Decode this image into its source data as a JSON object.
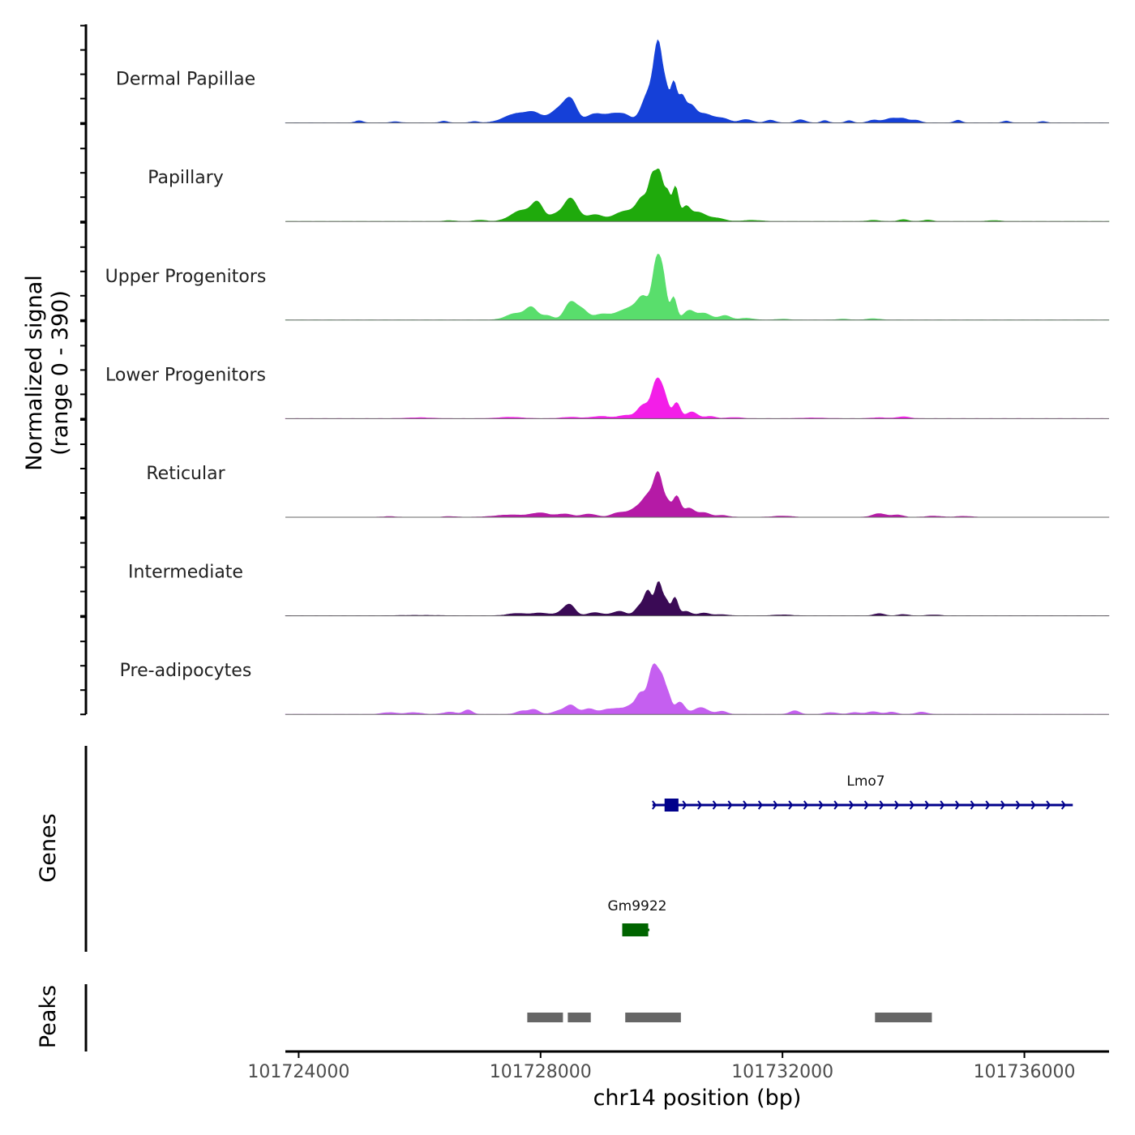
{
  "chart_data": {
    "type": "area",
    "title": "",
    "ylabel_line1": "Normalized signal",
    "ylabel_line2": "(range 0 - 390)",
    "ylim": [
      0,
      390
    ],
    "xlabel": "chr14 position (bp)",
    "xlim": [
      101723780,
      101737400
    ],
    "xticks": [
      101724000,
      101728000,
      101732000,
      101736000
    ],
    "xtick_labels": [
      "101724000",
      "101728000",
      "101732000",
      "101736000"
    ],
    "tracks": [
      {
        "name": "Dermal Papillae",
        "color": "#1540D8",
        "peaks": [
          [
            101725000,
            10,
            60
          ],
          [
            101725600,
            5,
            80
          ],
          [
            101726400,
            8,
            60
          ],
          [
            101726900,
            6,
            70
          ],
          [
            101727600,
            40,
            200
          ],
          [
            101727900,
            35,
            130
          ],
          [
            101728300,
            60,
            140
          ],
          [
            101728500,
            90,
            100
          ],
          [
            101728900,
            40,
            140
          ],
          [
            101729200,
            35,
            120
          ],
          [
            101729400,
            30,
            100
          ],
          [
            101729800,
            140,
            120
          ],
          [
            101729950,
            300,
            70
          ],
          [
            101730080,
            110,
            50
          ],
          [
            101730200,
            170,
            50
          ],
          [
            101730330,
            110,
            60
          ],
          [
            101730480,
            70,
            80
          ],
          [
            101730700,
            40,
            130
          ],
          [
            101731000,
            20,
            120
          ],
          [
            101731400,
            15,
            100
          ],
          [
            101731800,
            12,
            80
          ],
          [
            101732300,
            14,
            80
          ],
          [
            101732700,
            10,
            60
          ],
          [
            101733100,
            10,
            60
          ],
          [
            101733500,
            12,
            80
          ],
          [
            101733800,
            20,
            120
          ],
          [
            101734000,
            15,
            80
          ],
          [
            101734200,
            12,
            80
          ],
          [
            101734900,
            12,
            60
          ],
          [
            101735700,
            8,
            60
          ],
          [
            101736300,
            6,
            60
          ]
        ]
      },
      {
        "name": "Papillary",
        "color": "#1FAA0C",
        "peaks": [
          [
            101726500,
            4,
            80
          ],
          [
            101727000,
            6,
            90
          ],
          [
            101727700,
            50,
            180
          ],
          [
            101727950,
            70,
            90
          ],
          [
            101728250,
            30,
            120
          ],
          [
            101728500,
            100,
            110
          ],
          [
            101728900,
            30,
            150
          ],
          [
            101729300,
            30,
            120
          ],
          [
            101729500,
            35,
            120
          ],
          [
            101729700,
            100,
            100
          ],
          [
            101729850,
            160,
            60
          ],
          [
            101729970,
            200,
            60
          ],
          [
            101730100,
            120,
            50
          ],
          [
            101730230,
            150,
            50
          ],
          [
            101730400,
            60,
            70
          ],
          [
            101730600,
            40,
            120
          ],
          [
            101730900,
            15,
            130
          ],
          [
            101731500,
            5,
            150
          ],
          [
            101733500,
            5,
            100
          ],
          [
            101734000,
            8,
            80
          ],
          [
            101734400,
            6,
            80
          ],
          [
            101735500,
            4,
            100
          ]
        ]
      },
      {
        "name": "Upper Progenitors",
        "color": "#59DE6C",
        "peaks": [
          [
            101727600,
            30,
            160
          ],
          [
            101727850,
            50,
            90
          ],
          [
            101728100,
            20,
            100
          ],
          [
            101728500,
            80,
            100
          ],
          [
            101728700,
            40,
            90
          ],
          [
            101729000,
            25,
            120
          ],
          [
            101729300,
            30,
            130
          ],
          [
            101729500,
            40,
            110
          ],
          [
            101729700,
            100,
            100
          ],
          [
            101729920,
            250,
            70
          ],
          [
            101730030,
            150,
            60
          ],
          [
            101730200,
            100,
            50
          ],
          [
            101730450,
            40,
            90
          ],
          [
            101730700,
            30,
            120
          ],
          [
            101731050,
            20,
            90
          ],
          [
            101731400,
            8,
            120
          ],
          [
            101732000,
            4,
            100
          ],
          [
            101733000,
            4,
            100
          ],
          [
            101733500,
            6,
            110
          ]
        ]
      },
      {
        "name": "Lower Progenitors",
        "color": "#F31EE8",
        "peaks": [
          [
            101726000,
            4,
            200
          ],
          [
            101727500,
            6,
            200
          ],
          [
            101728500,
            6,
            150
          ],
          [
            101729000,
            10,
            150
          ],
          [
            101729400,
            14,
            110
          ],
          [
            101729700,
            60,
            100
          ],
          [
            101729920,
            160,
            80
          ],
          [
            101730050,
            80,
            70
          ],
          [
            101730250,
            70,
            60
          ],
          [
            101730500,
            30,
            90
          ],
          [
            101730800,
            10,
            90
          ],
          [
            101731200,
            5,
            120
          ],
          [
            101732500,
            3,
            200
          ],
          [
            101733600,
            4,
            140
          ],
          [
            101734000,
            8,
            100
          ]
        ]
      },
      {
        "name": "Reticular",
        "color": "#B51AA6",
        "peaks": [
          [
            101725500,
            3,
            100
          ],
          [
            101726500,
            3,
            100
          ],
          [
            101727500,
            10,
            250
          ],
          [
            101728000,
            18,
            150
          ],
          [
            101728400,
            14,
            120
          ],
          [
            101728800,
            14,
            120
          ],
          [
            101729300,
            20,
            120
          ],
          [
            101729600,
            40,
            120
          ],
          [
            101729800,
            90,
            100
          ],
          [
            101729950,
            170,
            70
          ],
          [
            101730100,
            60,
            60
          ],
          [
            101730250,
            90,
            60
          ],
          [
            101730450,
            40,
            90
          ],
          [
            101730700,
            20,
            100
          ],
          [
            101731000,
            8,
            100
          ],
          [
            101732000,
            5,
            150
          ],
          [
            101733600,
            16,
            110
          ],
          [
            101733900,
            10,
            90
          ],
          [
            101734500,
            5,
            120
          ],
          [
            101735000,
            4,
            120
          ]
        ]
      },
      {
        "name": "Intermediate",
        "color": "#3A0A55",
        "peaks": [
          [
            101726000,
            2,
            300
          ],
          [
            101727600,
            10,
            150
          ],
          [
            101728000,
            12,
            150
          ],
          [
            101728400,
            25,
            100
          ],
          [
            101728500,
            35,
            80
          ],
          [
            101728900,
            14,
            120
          ],
          [
            101729300,
            20,
            110
          ],
          [
            101729650,
            45,
            80
          ],
          [
            101729780,
            100,
            60
          ],
          [
            101729950,
            150,
            60
          ],
          [
            101730080,
            60,
            50
          ],
          [
            101730220,
            80,
            50
          ],
          [
            101730400,
            20,
            80
          ],
          [
            101730700,
            12,
            100
          ],
          [
            101731000,
            5,
            100
          ],
          [
            101732000,
            4,
            150
          ],
          [
            101733600,
            10,
            80
          ],
          [
            101734000,
            6,
            80
          ],
          [
            101734500,
            4,
            100
          ]
        ]
      },
      {
        "name": "Pre-adipocytes",
        "color": "#C55FF0",
        "peaks": [
          [
            101725500,
            8,
            120
          ],
          [
            101725900,
            8,
            120
          ],
          [
            101726500,
            10,
            110
          ],
          [
            101726800,
            20,
            70
          ],
          [
            101727700,
            15,
            100
          ],
          [
            101727900,
            20,
            80
          ],
          [
            101728300,
            15,
            100
          ],
          [
            101728500,
            40,
            90
          ],
          [
            101728800,
            25,
            110
          ],
          [
            101729100,
            20,
            100
          ],
          [
            101729300,
            22,
            100
          ],
          [
            101729500,
            35,
            90
          ],
          [
            101729650,
            80,
            70
          ],
          [
            101729870,
            220,
            90
          ],
          [
            101730020,
            110,
            60
          ],
          [
            101730120,
            60,
            50
          ],
          [
            101730300,
            55,
            80
          ],
          [
            101730650,
            30,
            120
          ],
          [
            101731000,
            14,
            80
          ],
          [
            101732200,
            16,
            80
          ],
          [
            101732800,
            8,
            100
          ],
          [
            101733200,
            8,
            100
          ],
          [
            101733500,
            12,
            90
          ],
          [
            101733800,
            10,
            90
          ],
          [
            101734300,
            10,
            90
          ]
        ]
      }
    ],
    "genes": {
      "panel_label": "Genes",
      "items": [
        {
          "name": "Lmo7",
          "start": 101729850,
          "end": 101736800,
          "strand": "+",
          "exons": [
            [
              101730050,
              101730280
            ]
          ],
          "color": "#00008B"
        },
        {
          "name": "Gm9922",
          "start": 101729350,
          "end": 101729800,
          "strand": "-",
          "exons": [
            [
              101729350,
              101729780
            ]
          ],
          "color": "#006400"
        }
      ]
    },
    "peaks_track": {
      "panel_label": "Peaks",
      "color": "#666666",
      "regions": [
        [
          101727780,
          101728370
        ],
        [
          101728450,
          101728830
        ],
        [
          101729400,
          101730320
        ],
        [
          101733530,
          101734470
        ]
      ]
    }
  }
}
